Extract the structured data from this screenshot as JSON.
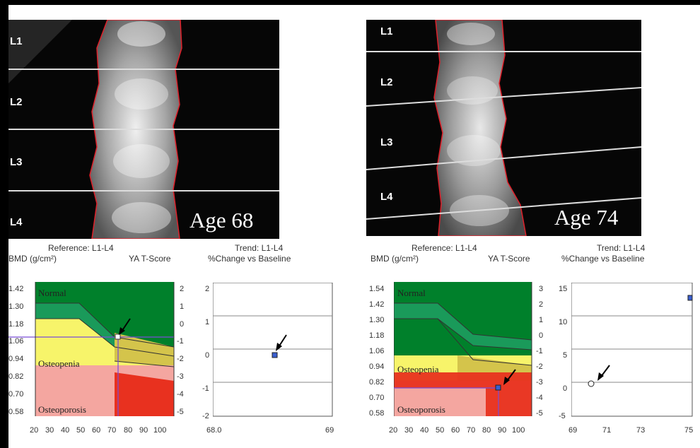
{
  "panels": [
    {
      "age_label": "Age 68",
      "vertebrae": [
        "L1",
        "L2",
        "L3",
        "L4"
      ],
      "reference_title": "Reference: L1-L4",
      "bmd_axis_label": "BMD (g/cm²)",
      "tscore_axis_label": "YA T-Score",
      "bmd_ticks": [
        "1.42",
        "1.30",
        "1.18",
        "1.06",
        "0.94",
        "0.82",
        "0.70",
        "0.58"
      ],
      "tscore_ticks": [
        "2",
        "1",
        "0",
        "-1",
        "-2",
        "-3",
        "-4",
        "-5"
      ],
      "age_ticks": [
        "20",
        "30",
        "40",
        "50",
        "60",
        "70",
        "80",
        "90",
        "100"
      ],
      "zones": {
        "normal": "Normal",
        "osteopenia": "Osteopenia",
        "osteoporosis": "Osteoporosis"
      },
      "trend_title": "Trend: L1-L4",
      "trend_axis_label": "%Change vs Baseline",
      "trend_y_ticks": [
        "2",
        "1",
        "0",
        "-1",
        "-2"
      ],
      "trend_x_ticks": [
        "68.0",
        "69"
      ]
    },
    {
      "age_label": "Age 74",
      "vertebrae": [
        "L1",
        "L2",
        "L3",
        "L4"
      ],
      "reference_title": "Reference: L1-L4",
      "bmd_axis_label": "BMD (g/cm²)",
      "tscore_axis_label": "YA T-Score",
      "bmd_ticks": [
        "1.54",
        "1.42",
        "1.30",
        "1.18",
        "1.06",
        "0.94",
        "0.82",
        "0.70",
        "0.58"
      ],
      "tscore_ticks": [
        "3",
        "2",
        "1",
        "0",
        "-1",
        "-2",
        "-3",
        "-4",
        "-5"
      ],
      "age_ticks": [
        "20",
        "30",
        "40",
        "50",
        "60",
        "70",
        "80",
        "90",
        "100"
      ],
      "zones": {
        "normal": "Normal",
        "osteopenia": "Osteopenia",
        "osteoporosis": "Osteoporosis"
      },
      "trend_title": "Trend: L1-L4",
      "trend_axis_label": "%Change vs Baseline",
      "trend_y_ticks": [
        "15",
        "10",
        "5",
        "0",
        "-5"
      ],
      "trend_x_ticks": [
        "69",
        "71",
        "73",
        "75"
      ]
    }
  ]
}
